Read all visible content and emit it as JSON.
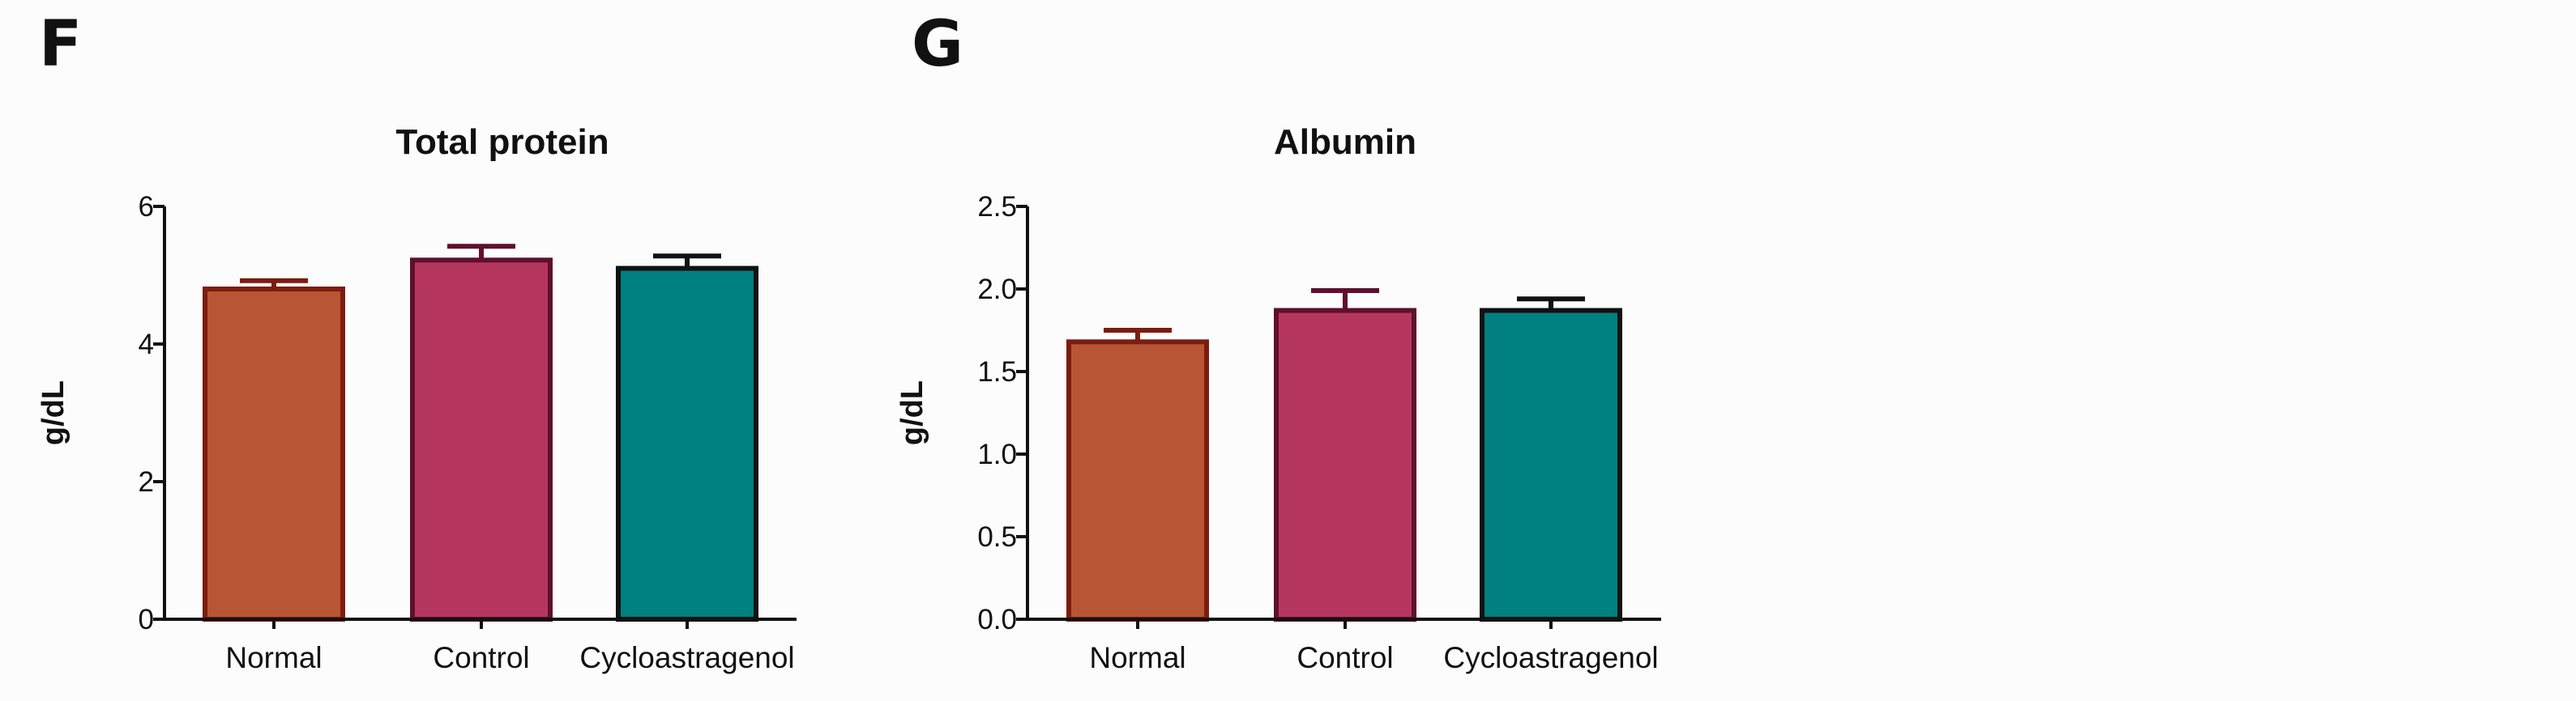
{
  "panel_letters": [
    "F",
    "G"
  ],
  "colors": {
    "normal_fill": "#b85535",
    "normal_stroke": "#7b1d10",
    "control_fill": "#b5375f",
    "control_stroke": "#5f0f2c",
    "cyclo_fill": "#008080",
    "cyclo_stroke": "#111111",
    "axis": "#111111"
  },
  "chart_data": [
    {
      "type": "bar",
      "panel": "F",
      "title": "Total protein",
      "ylabel": "g/dL",
      "xlabel": "",
      "categories": [
        "Normal",
        "Control",
        "Cycloastragenol"
      ],
      "values": [
        4.8,
        5.22,
        5.1
      ],
      "errors": [
        0.12,
        0.2,
        0.18
      ],
      "ylim": [
        0,
        6
      ],
      "yticks": [
        0,
        2,
        4,
        6
      ],
      "ytick_labels": [
        "0",
        "2",
        "4",
        "6"
      ]
    },
    {
      "type": "bar",
      "panel": "G",
      "title": "Albumin",
      "ylabel": "g/dL",
      "xlabel": "",
      "categories": [
        "Normal",
        "Control",
        "Cycloastragenol"
      ],
      "values": [
        1.68,
        1.87,
        1.87
      ],
      "errors": [
        0.07,
        0.12,
        0.07
      ],
      "ylim": [
        0,
        2.5
      ],
      "yticks": [
        0,
        0.5,
        1.0,
        1.5,
        2.0,
        2.5
      ],
      "ytick_labels": [
        "0.0",
        "0.5",
        "1.0",
        "1.5",
        "2.0",
        "2.5"
      ]
    }
  ]
}
